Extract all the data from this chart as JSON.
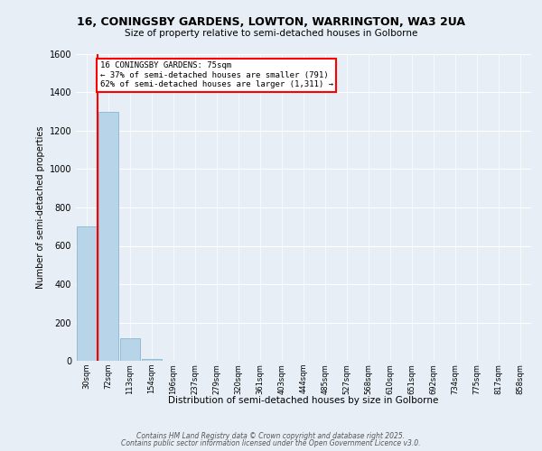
{
  "title_line1": "16, CONINGSBY GARDENS, LOWTON, WARRINGTON, WA3 2UA",
  "title_line2": "Size of property relative to semi-detached houses in Golborne",
  "xlabel": "Distribution of semi-detached houses by size in Golborne",
  "ylabel": "Number of semi-detached properties",
  "bins": [
    30,
    72,
    113,
    154,
    196,
    237,
    279,
    320,
    361,
    403,
    444,
    485,
    527,
    568,
    610,
    651,
    692,
    734,
    775,
    817,
    858
  ],
  "values": [
    700,
    1300,
    120,
    10,
    2,
    0,
    0,
    0,
    0,
    0,
    0,
    0,
    0,
    0,
    0,
    0,
    0,
    0,
    0,
    0,
    0
  ],
  "bar_color": "#b8d4e8",
  "bar_edge_color": "#7aafc8",
  "property_bin_index": 1,
  "annotation_title": "16 CONINGSBY GARDENS: 75sqm",
  "annotation_line2": "← 37% of semi-detached houses are smaller (791)",
  "annotation_line3": "62% of semi-detached houses are larger (1,311) →",
  "ylim": [
    0,
    1600
  ],
  "yticks": [
    0,
    200,
    400,
    600,
    800,
    1000,
    1200,
    1400,
    1600
  ],
  "footer_line1": "Contains HM Land Registry data © Crown copyright and database right 2025.",
  "footer_line2": "Contains public sector information licensed under the Open Government Licence v3.0.",
  "bg_color": "#e8eef5"
}
